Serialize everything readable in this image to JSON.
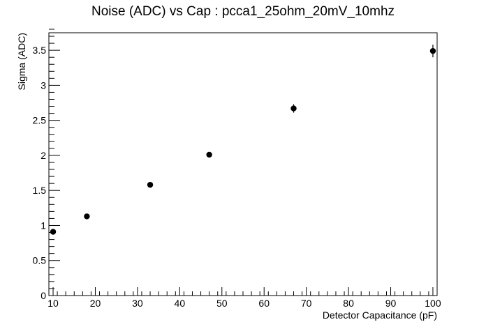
{
  "chart_data": {
    "type": "scatter",
    "title": "Noise (ADC) vs Cap : pcca1_25ohm_20mV_10mhz",
    "xlabel": "Detector Capacitance (pF)",
    "ylabel": "Sigma (ADC)",
    "xlim": [
      9,
      101
    ],
    "ylim": [
      0,
      3.75
    ],
    "x_ticks": [
      10,
      20,
      30,
      40,
      50,
      60,
      70,
      80,
      90,
      100
    ],
    "y_ticks": [
      0,
      0.5,
      1,
      1.5,
      2,
      2.5,
      3,
      3.5
    ],
    "x_tick_labels": [
      "10",
      "20",
      "30",
      "40",
      "50",
      "60",
      "70",
      "80",
      "90",
      "100"
    ],
    "y_tick_labels": [
      "0",
      "0.5",
      "1",
      "1.5",
      "2",
      "2.5",
      "3",
      "3.5"
    ],
    "grid": false,
    "legend": "none",
    "points": [
      {
        "x": 10,
        "y": 0.91,
        "yerr": 0.04
      },
      {
        "x": 18,
        "y": 1.13,
        "yerr": 0.03
      },
      {
        "x": 33,
        "y": 1.58,
        "yerr": 0.03
      },
      {
        "x": 47,
        "y": 2.01,
        "yerr": 0.04
      },
      {
        "x": 67,
        "y": 2.67,
        "yerr": 0.06
      },
      {
        "x": 100,
        "y": 3.49,
        "yerr": 0.09
      }
    ]
  }
}
